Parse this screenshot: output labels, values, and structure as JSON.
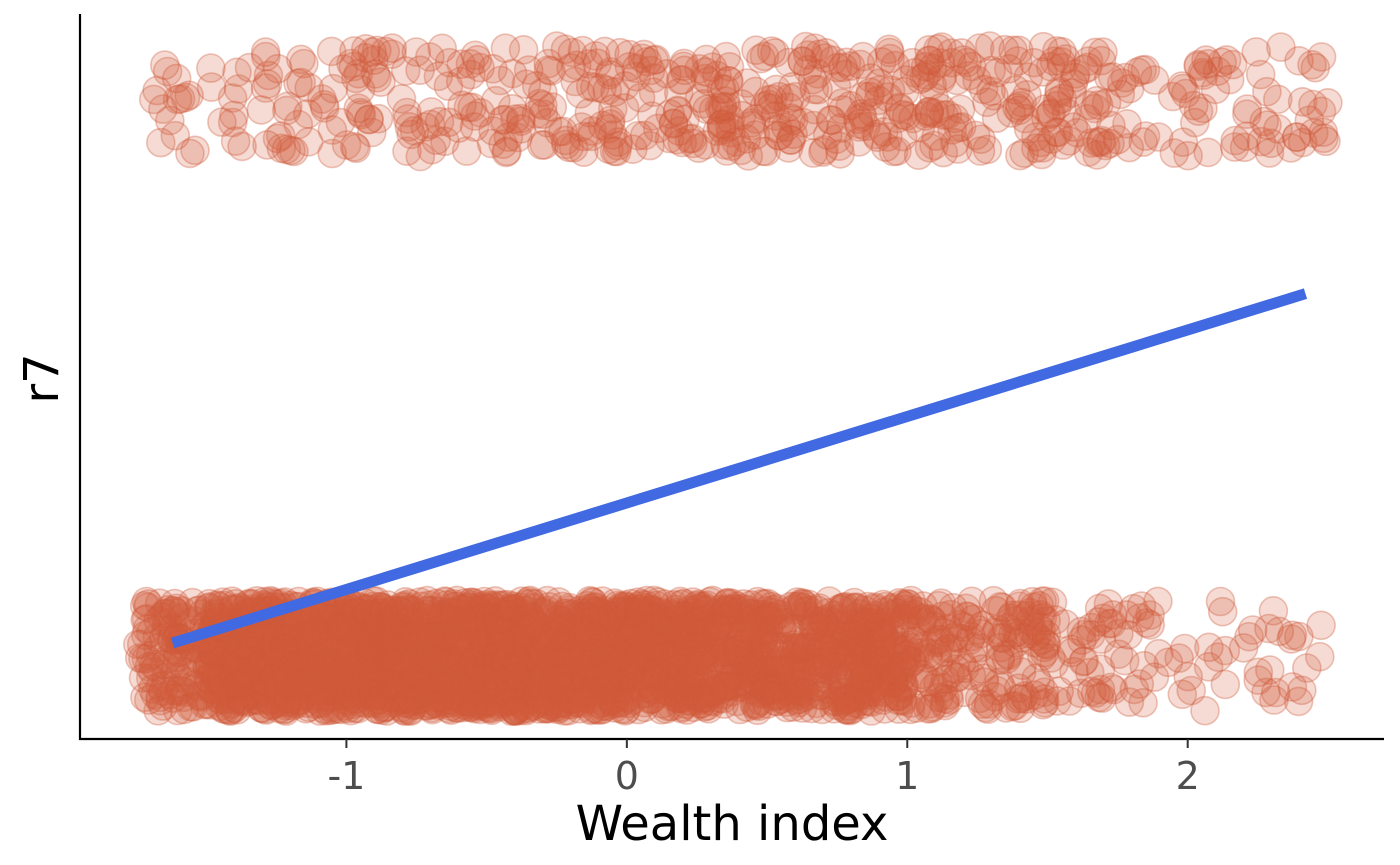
{
  "chart_data": {
    "type": "scatter",
    "title": "",
    "xlabel": "Wealth index",
    "ylabel": "r7",
    "xlim": [
      -1.95,
      2.7
    ],
    "ylim": [
      -0.15,
      1.15
    ],
    "x_ticks": [
      -1,
      0,
      1,
      2
    ],
    "x_tick_labels": [
      "-1",
      "0",
      "1",
      "2"
    ],
    "y_ticks": [],
    "grid": false,
    "legend": "none",
    "colors": {
      "points": "#d05a3c",
      "fit_line": "#4169e1",
      "axis": "#000000",
      "tick_label": "#4d4d4d"
    },
    "point_alpha": 0.22,
    "series": [
      {
        "kind": "points",
        "groups": [
          {
            "y": 0,
            "jitter_height": 0.1,
            "bins": [
              {
                "x_range": [
                  -1.75,
                  -1.5
                ],
                "n": 110
              },
              {
                "x_range": [
                  -1.5,
                  -1.0
                ],
                "n": 600
              },
              {
                "x_range": [
                  -1.0,
                  -0.5
                ],
                "n": 700
              },
              {
                "x_range": [
                  -0.5,
                  0.0
                ],
                "n": 620
              },
              {
                "x_range": [
                  0.0,
                  0.5
                ],
                "n": 520
              },
              {
                "x_range": [
                  0.5,
                  1.0
                ],
                "n": 380
              },
              {
                "x_range": [
                  1.0,
                  1.5
                ],
                "n": 170
              },
              {
                "x_range": [
                  1.5,
                  1.9
                ],
                "n": 55
              },
              {
                "x_range": [
                  1.9,
                  2.5
                ],
                "n": 35
              }
            ]
          },
          {
            "y": 1,
            "jitter_height": 0.1,
            "bins": [
              {
                "x_range": [
                  -1.7,
                  -1.2
                ],
                "n": 40
              },
              {
                "x_range": [
                  -1.2,
                  -0.6
                ],
                "n": 70
              },
              {
                "x_range": [
                  -0.6,
                  0.0
                ],
                "n": 95
              },
              {
                "x_range": [
                  0.0,
                  0.6
                ],
                "n": 115
              },
              {
                "x_range": [
                  0.6,
                  1.2
                ],
                "n": 120
              },
              {
                "x_range": [
                  1.2,
                  1.8
                ],
                "n": 100
              },
              {
                "x_range": [
                  1.8,
                  2.5
                ],
                "n": 65
              }
            ]
          }
        ]
      },
      {
        "kind": "fit_line",
        "x": [
          -1.62,
          2.42
        ],
        "y": [
          0.023,
          0.653
        ]
      }
    ]
  }
}
